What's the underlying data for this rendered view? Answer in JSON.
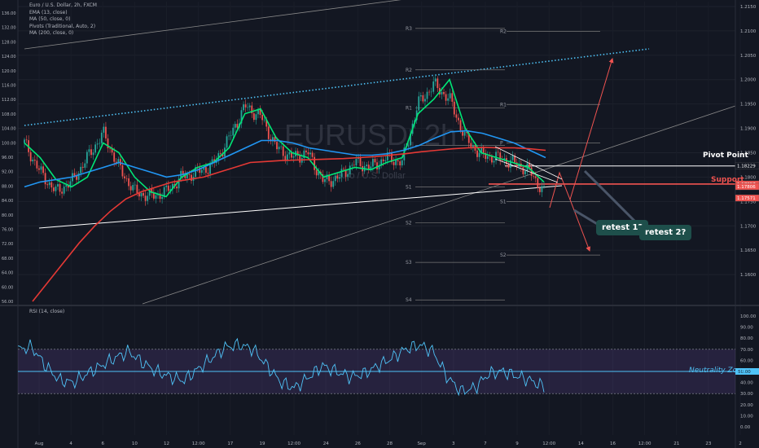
{
  "legend": {
    "symbol": "Euro / U.S. Dollar, 2h, FXCM",
    "ema": "EMA (13, close)",
    "ma50": "MA (50, close, 0)",
    "pivots": "Pivots (Traditional, Auto, 2)",
    "ma200": "MA (200, close, 0)"
  },
  "rsi_legend": "RSI (14, close)",
  "watermark": {
    "text": "EURUSD, 2h",
    "sub": "Euro / U.S. Dollar"
  },
  "annotations": {
    "pivot_point": "Pivot Point",
    "support": "Support",
    "neutrality": "Neutrality Zone",
    "retest1": "retest 1?",
    "retest2": "retest 2?"
  },
  "colors": {
    "background": "#131722",
    "ema": "#00e676",
    "ma50": "#2196f3",
    "ma200": "#e53935",
    "support": "#ef5350",
    "rsi": "#4fc3f7",
    "rsi_band": "#7e57c2",
    "callout": "#1e4f4b"
  },
  "price_badges": [
    "1.18229",
    "1.17857",
    "1.17806",
    "1.17571"
  ],
  "rsi_badge": "50.00",
  "pivot_labels_left": [
    "R3",
    "R2",
    "R1",
    "P",
    "S1",
    "S2",
    "S3",
    "S4"
  ],
  "pivot_labels_right": [
    "R2",
    "R1",
    "P",
    "S1",
    "S2"
  ],
  "chart_data": [
    {
      "type": "line",
      "title": "Euro / U.S. Dollar, 2h, FXCM",
      "x_tick_labels": [
        "Aug",
        "4",
        "6",
        "10",
        "12",
        "12:00",
        "17",
        "19",
        "12:00",
        "24",
        "26",
        "28",
        "Sep",
        "3",
        "7",
        "9",
        "12:00",
        "14",
        "16",
        "12:00",
        "21",
        "23",
        "2"
      ],
      "left_axis": [
        136.0,
        132.0,
        128.0,
        124.0,
        120.0,
        116.0,
        112.0,
        108.0,
        104.0,
        100.0,
        96.0,
        92.0,
        88.0,
        84.0,
        80.0,
        76.0,
        72.0,
        68.0,
        64.0,
        60.0,
        56.0
      ],
      "right_axis": [
        1.215,
        1.21,
        1.205,
        1.2,
        1.195,
        1.19,
        1.185,
        1.18,
        1.175,
        1.17,
        1.165,
        1.16
      ],
      "ylim": [
        1.154,
        1.216
      ],
      "pivot_levels": {
        "R3": 1.2105,
        "R2": 1.202,
        "R1": 1.1942,
        "P": 1.1865,
        "S1": 1.178,
        "S2": 1.1706,
        "S3": 1.1625,
        "S4": 1.1548
      },
      "pivot_levels_next": {
        "R2": 1.2099,
        "R1": 1.1949,
        "P": 1.187,
        "S1": 1.175,
        "S2": 1.164
      },
      "pivot_point_line": 1.18229,
      "support_line": 1.17857,
      "series": [
        {
          "name": "EMA (13, close)",
          "values": [
            1.187,
            1.184,
            1.1795,
            1.178,
            1.18,
            1.187,
            1.185,
            1.18,
            1.177,
            1.176,
            1.18,
            1.182,
            1.183,
            1.186,
            1.193,
            1.194,
            1.188,
            1.185,
            1.184,
            1.18,
            1.181,
            1.182,
            1.1815,
            1.183,
            1.184,
            1.193,
            1.196,
            1.2,
            1.19,
            1.185,
            1.184,
            1.183,
            1.182,
            1.179
          ]
        },
        {
          "name": "MA (50, close, 0)",
          "values": [
            1.178,
            1.179,
            1.1795,
            1.18,
            1.181,
            1.182,
            1.183,
            1.182,
            1.181,
            1.18,
            1.1805,
            1.1815,
            1.183,
            1.1845,
            1.186,
            1.1875,
            1.1875,
            1.187,
            1.186,
            1.1855,
            1.185,
            1.1845,
            1.1845,
            1.1848,
            1.1855,
            1.1865,
            1.188,
            1.1893,
            1.1895,
            1.189,
            1.188,
            1.187,
            1.1855,
            1.184
          ]
        },
        {
          "name": "MA (200, close, 0)",
          "values": [
            1.1545,
            1.1585,
            1.1625,
            1.1665,
            1.17,
            1.173,
            1.1755,
            1.177,
            1.178,
            1.179,
            1.1795,
            1.18,
            1.181,
            1.182,
            1.183,
            1.1832,
            1.1834,
            1.1835,
            1.1836,
            1.1837,
            1.1838,
            1.184,
            1.1842,
            1.1845,
            1.1848,
            1.1852,
            1.1855,
            1.1858,
            1.186,
            1.1861,
            1.186,
            1.186,
            1.1858,
            1.1855
          ]
        }
      ],
      "candles_close": [
        1.187,
        1.181,
        1.177,
        1.179,
        1.184,
        1.189,
        1.182,
        1.177,
        1.176,
        1.177,
        1.18,
        1.181,
        1.1825,
        1.188,
        1.1945,
        1.1925,
        1.186,
        1.184,
        1.185,
        1.179,
        1.18,
        1.183,
        1.182,
        1.184,
        1.183,
        1.195,
        1.199,
        1.196,
        1.188,
        1.1845,
        1.184,
        1.183,
        1.1815,
        1.177
      ]
    },
    {
      "type": "line",
      "title": "RSI (14, close)",
      "right_axis": [
        100.0,
        90.0,
        80.0,
        70.0,
        60.0,
        50.0,
        40.0,
        30.0,
        20.0,
        10.0,
        0.0
      ],
      "ylim": [
        0,
        100
      ],
      "band": [
        30,
        70
      ],
      "midline": 50,
      "series": [
        {
          "name": "RSI (14, close)",
          "values": [
            70,
            72,
            55,
            42,
            40,
            48,
            55,
            62,
            68,
            58,
            50,
            45,
            42,
            52,
            62,
            72,
            74,
            70,
            55,
            40,
            35,
            45,
            55,
            50,
            45,
            48,
            55,
            62,
            70,
            74,
            68,
            45,
            32,
            35,
            48,
            50,
            46,
            42,
            36
          ]
        }
      ]
    }
  ]
}
